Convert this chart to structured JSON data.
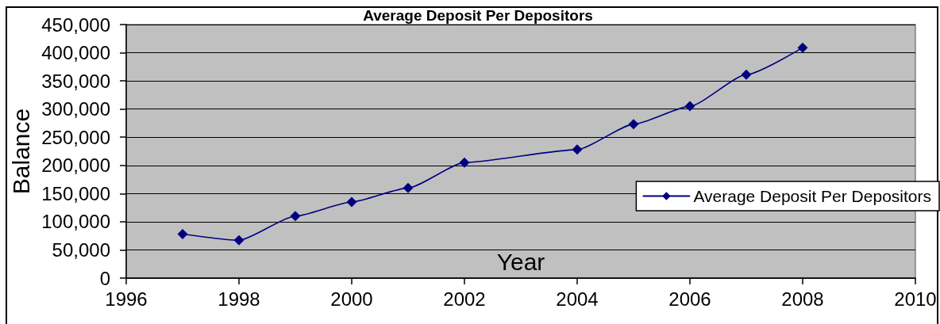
{
  "chart_data": {
    "type": "line",
    "title": "Average Deposit Per Depositors",
    "xlabel": "Year",
    "ylabel": "Balance",
    "x": [
      1997,
      1998,
      1999,
      2000,
      2001,
      2002,
      2004,
      2005,
      2006,
      2007,
      2008
    ],
    "series": [
      {
        "name": "Average Deposit Per Depositors",
        "color": "#000080",
        "values": [
          78000,
          67000,
          110000,
          135000,
          160000,
          205000,
          228000,
          273000,
          305000,
          361000,
          409000
        ]
      }
    ],
    "xlim": [
      1996,
      2010
    ],
    "xticks": [
      1996,
      1998,
      2000,
      2002,
      2004,
      2006,
      2008,
      2010
    ],
    "ylim": [
      0,
      450000
    ],
    "yticks": [
      0,
      {
        "value": 50000,
        "label": "50,000"
      },
      {
        "value": 100000,
        "label": "100,000"
      },
      {
        "value": 150000,
        "label": "150,000"
      },
      {
        "value": 200000,
        "label": "200,000"
      },
      {
        "value": 250000,
        "label": "250,000"
      },
      {
        "value": 300000,
        "label": "300,000"
      },
      {
        "value": 350000,
        "label": "350,000"
      },
      {
        "value": 400000,
        "label": "400,000"
      },
      {
        "value": 450000,
        "label": "450,000"
      }
    ],
    "grid": "y",
    "legend": "right",
    "marker": "diamond",
    "line_style": "solid"
  }
}
